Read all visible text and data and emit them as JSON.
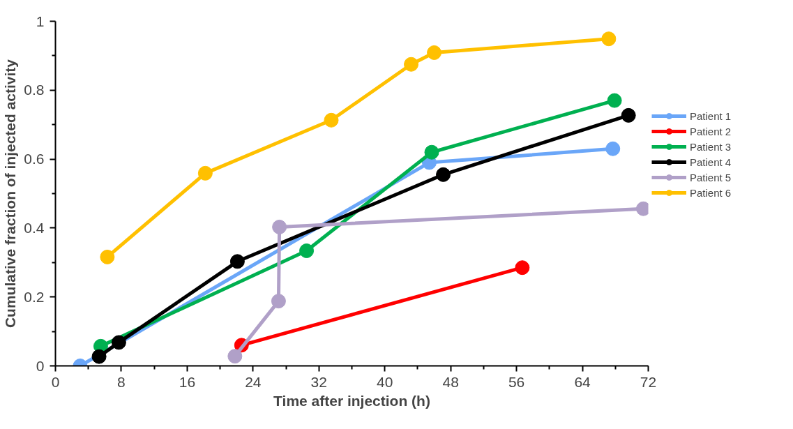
{
  "chart_data": {
    "type": "line",
    "xlabel": "Time after injection (h)",
    "ylabel": "Cumulative fraction of injected activity",
    "xlim": [
      0,
      72
    ],
    "ylim": [
      0,
      1
    ],
    "xticks": [
      0,
      {
        "value": 4,
        "label": null
      },
      8,
      {
        "value": 12,
        "label": null
      },
      16,
      {
        "value": 20,
        "label": null
      },
      24,
      {
        "value": 28,
        "label": null
      },
      32,
      {
        "value": 36,
        "label": null
      },
      40,
      {
        "value": 44,
        "label": null
      },
      48,
      {
        "value": 52,
        "label": null
      },
      56,
      {
        "value": 60,
        "label": null
      },
      64,
      {
        "value": 68,
        "label": null
      },
      72
    ],
    "yticks": [
      0,
      {
        "value": 0.1,
        "label": null
      },
      0.2,
      {
        "value": 0.3,
        "label": null
      },
      0.4,
      {
        "value": 0.5,
        "label": null
      },
      0.6,
      {
        "value": 0.7,
        "label": null
      },
      0.8,
      {
        "value": 0.9,
        "label": null
      },
      1
    ],
    "grid": false,
    "legend": "right",
    "marker": "circle",
    "line_style": "solid",
    "series": [
      {
        "name": "Patient 1",
        "color": "#6aa6f8",
        "x": [
          3.0,
          45.4,
          67.7
        ],
        "values": [
          0.0,
          0.59,
          0.63
        ]
      },
      {
        "name": "Patient 2",
        "color": "#ff0000",
        "x": [
          22.6,
          56.7
        ],
        "values": [
          0.06,
          0.285
        ]
      },
      {
        "name": "Patient 3",
        "color": "#00b050",
        "x": [
          5.5,
          30.5,
          45.7,
          67.9
        ],
        "values": [
          0.057,
          0.334,
          0.62,
          0.77
        ]
      },
      {
        "name": "Patient 4",
        "color": "#000000",
        "x": [
          5.3,
          7.7,
          22.1,
          47.1,
          69.6
        ],
        "values": [
          0.027,
          0.068,
          0.303,
          0.555,
          0.727
        ]
      },
      {
        "name": "Patient 5",
        "color": "#b0a0c8",
        "x": [
          21.8,
          27.1,
          27.2,
          71.4
        ],
        "values": [
          0.028,
          0.188,
          0.403,
          0.456
        ]
      },
      {
        "name": "Patient 6",
        "color": "#ffc000",
        "x": [
          6.3,
          18.2,
          33.5,
          43.2,
          46.0,
          67.2
        ],
        "values": [
          0.316,
          0.559,
          0.713,
          0.875,
          0.909,
          0.949
        ]
      }
    ]
  }
}
